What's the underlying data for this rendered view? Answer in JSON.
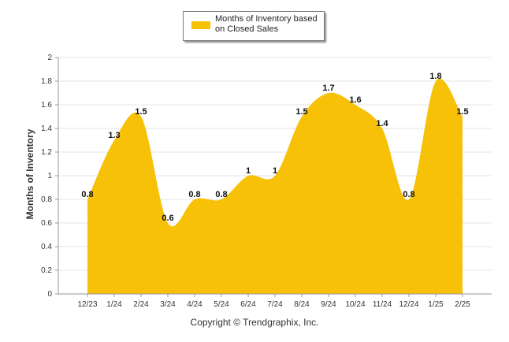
{
  "chart_data": {
    "type": "area",
    "categories": [
      "12/23",
      "1/24",
      "2/24",
      "3/24",
      "4/24",
      "5/24",
      "6/24",
      "7/24",
      "8/24",
      "9/24",
      "10/24",
      "11/24",
      "12/24",
      "1/25",
      "2/25"
    ],
    "series": [
      {
        "name": "Months of Inventory based on Closed Sales",
        "values": [
          0.8,
          1.3,
          1.5,
          0.6,
          0.8,
          0.8,
          1,
          1,
          1.5,
          1.7,
          1.6,
          1.4,
          0.8,
          1.8,
          1.5
        ]
      }
    ],
    "data_labels": [
      "0.8",
      "1.3",
      "1.5",
      "0.6",
      "0.8",
      "0.8",
      "1",
      "1",
      "1.5",
      "1.7",
      "1.6",
      "1.4",
      "0.8",
      "1.8",
      "1.5"
    ],
    "ylabel": "Months of Inventory",
    "xlabel": "",
    "ylim": [
      0,
      2
    ],
    "yticks": [
      "0",
      "0.2",
      "0.4",
      "0.6",
      "0.8",
      "1",
      "1.2",
      "1.4",
      "1.6",
      "1.8",
      "2"
    ],
    "grid": true,
    "legend_position": "top-center",
    "fill_color": "#f7c107"
  },
  "legend": {
    "label": "Months of Inventory based on Closed Sales"
  },
  "footer": {
    "copyright": "Copyright © Trendgraphix, Inc."
  }
}
